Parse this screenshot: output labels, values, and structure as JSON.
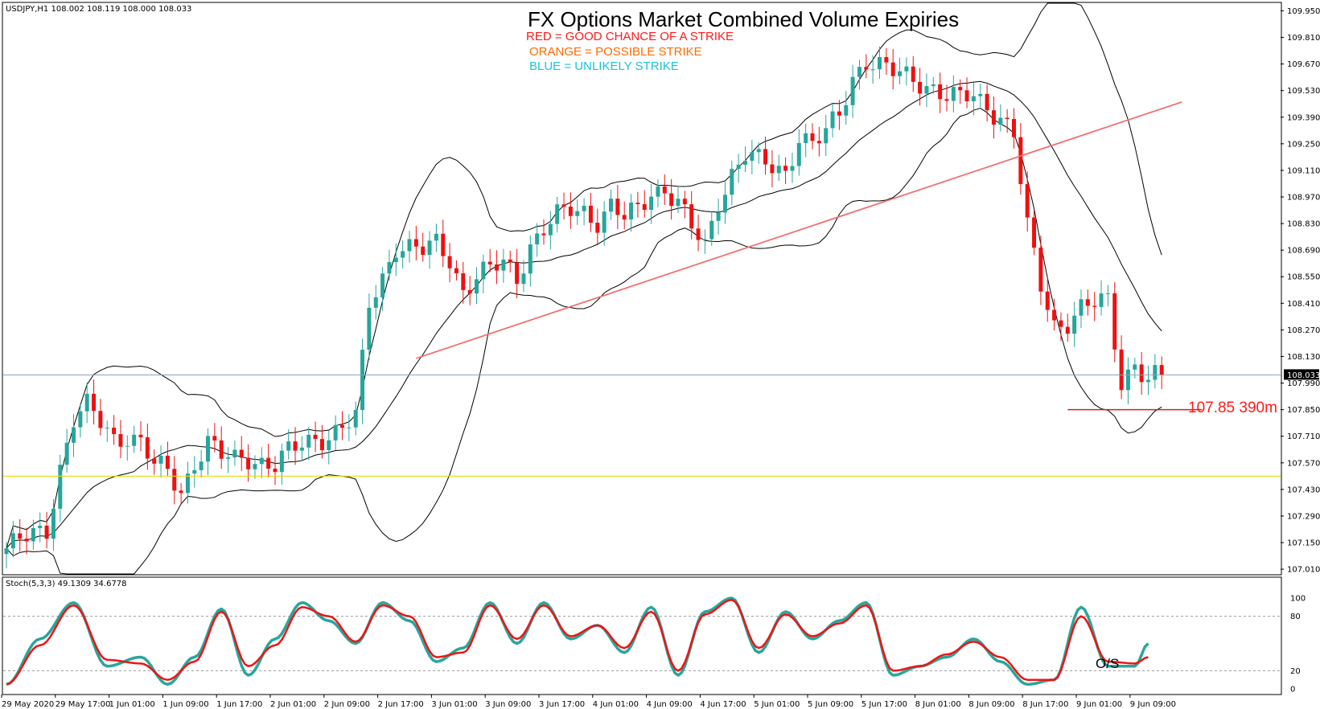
{
  "header": {
    "symbol_info": "USDJPY,H1  108.002 108.119 108.000 108.033"
  },
  "title": "FX Options Market Combined Volume Expiries",
  "legend": {
    "red": "RED = GOOD CHANCE OF A STRIKE",
    "orange": "ORANGE = POSSIBLE STRIKE",
    "blue": "BLUE = UNLIKELY STRIKE"
  },
  "colors": {
    "bull": "#26a69a",
    "bear": "#ee1010",
    "wick_bull": "#26a69a",
    "trendline": "#f07070",
    "support_line": "#f0d800",
    "price_line": "#8ca0b4",
    "red_text": "#ff1a1a",
    "orange_text": "#ff6a00",
    "blue_text": "#19c4d6",
    "stoch_main": "#2aa59a",
    "stoch_signal": "#ee1414"
  },
  "annotations": {
    "expiry_label": "107.85 390m",
    "expiry_level": 107.85,
    "current_price_label": "108.033",
    "current_price": 108.033,
    "support_level": 107.5,
    "os_label": "O/S"
  },
  "stoch_panel": {
    "label": "Stoch(5,3,3) 49.1309 34.6778",
    "levels": [
      100,
      80,
      20,
      0
    ],
    "level_labels": [
      "100",
      "80",
      "20",
      "0"
    ],
    "range": [
      0,
      100
    ]
  },
  "chart_data": {
    "type": "candlestick",
    "y_ticks": [
      "109.950",
      "109.810",
      "109.670",
      "109.530",
      "109.390",
      "109.250",
      "109.110",
      "108.970",
      "108.830",
      "108.690",
      "108.550",
      "108.410",
      "108.270",
      "108.130",
      "107.990",
      "107.850",
      "107.710",
      "107.570",
      "107.430",
      "107.290",
      "107.150",
      "107.010"
    ],
    "y_tick_values": [
      109.95,
      109.81,
      109.67,
      109.53,
      109.39,
      109.25,
      109.11,
      108.97,
      108.83,
      108.69,
      108.55,
      108.41,
      108.27,
      108.13,
      107.99,
      107.85,
      107.71,
      107.57,
      107.43,
      107.29,
      107.15,
      107.01
    ],
    "ylim": [
      106.985,
      109.99
    ],
    "x_ticks": [
      "29 May 2020",
      "29 May 17:00",
      "1 Jun 01:00",
      "1 Jun 09:00",
      "1 Jun 17:00",
      "2 Jun 01:00",
      "2 Jun 09:00",
      "2 Jun 17:00",
      "3 Jun 01:00",
      "3 Jun 09:00",
      "3 Jun 17:00",
      "4 Jun 01:00",
      "4 Jun 09:00",
      "4 Jun 17:00",
      "5 Jun 01:00",
      "5 Jun 09:00",
      "5 Jun 17:00",
      "8 Jun 01:00",
      "8 Jun 09:00",
      "8 Jun 17:00",
      "9 Jun 01:00",
      "9 Jun 09:00"
    ],
    "x_tick_bar_index": [
      0,
      8,
      16,
      24,
      32,
      40,
      48,
      56,
      64,
      72,
      80,
      88,
      96,
      104,
      112,
      120,
      128,
      136,
      144,
      152,
      160,
      168
    ],
    "close_path": [
      [
        0,
        107.12
      ],
      [
        6,
        107.22
      ],
      [
        8,
        107.55
      ],
      [
        10,
        107.8
      ],
      [
        12,
        107.86
      ],
      [
        14,
        107.78
      ],
      [
        16,
        107.7
      ],
      [
        18,
        107.72
      ],
      [
        20,
        107.68
      ],
      [
        22,
        107.55
      ],
      [
        24,
        107.52
      ],
      [
        26,
        107.42
      ],
      [
        28,
        107.58
      ],
      [
        30,
        107.68
      ],
      [
        32,
        107.6
      ],
      [
        34,
        107.58
      ],
      [
        36,
        107.6
      ],
      [
        38,
        107.58
      ],
      [
        40,
        107.56
      ],
      [
        42,
        107.62
      ],
      [
        44,
        107.66
      ],
      [
        46,
        107.7
      ],
      [
        48,
        107.72
      ],
      [
        50,
        107.76
      ],
      [
        52,
        107.8
      ],
      [
        54,
        108.4
      ],
      [
        56,
        108.55
      ],
      [
        58,
        108.72
      ],
      [
        60,
        108.7
      ],
      [
        62,
        108.68
      ],
      [
        64,
        108.72
      ],
      [
        66,
        108.65
      ],
      [
        68,
        108.48
      ],
      [
        70,
        108.55
      ],
      [
        72,
        108.58
      ],
      [
        74,
        108.62
      ],
      [
        76,
        108.55
      ],
      [
        78,
        108.72
      ],
      [
        80,
        108.8
      ],
      [
        82,
        108.86
      ],
      [
        84,
        108.9
      ],
      [
        86,
        108.9
      ],
      [
        88,
        108.85
      ],
      [
        90,
        108.92
      ],
      [
        92,
        108.85
      ],
      [
        94,
        108.9
      ],
      [
        96,
        109.0
      ],
      [
        98,
        109.02
      ],
      [
        100,
        108.94
      ],
      [
        102,
        108.8
      ],
      [
        104,
        108.7
      ],
      [
        106,
        108.95
      ],
      [
        108,
        109.1
      ],
      [
        110,
        109.2
      ],
      [
        112,
        109.15
      ],
      [
        114,
        109.12
      ],
      [
        116,
        109.1
      ],
      [
        118,
        109.3
      ],
      [
        120,
        109.25
      ],
      [
        122,
        109.3
      ],
      [
        124,
        109.4
      ],
      [
        126,
        109.6
      ],
      [
        128,
        109.7
      ],
      [
        130,
        109.66
      ],
      [
        132,
        109.62
      ],
      [
        134,
        109.6
      ],
      [
        136,
        109.58
      ],
      [
        138,
        109.55
      ],
      [
        140,
        109.5
      ],
      [
        142,
        109.48
      ],
      [
        144,
        109.5
      ],
      [
        146,
        109.45
      ],
      [
        148,
        109.4
      ],
      [
        150,
        109.3
      ],
      [
        152,
        108.8
      ],
      [
        154,
        108.5
      ],
      [
        156,
        108.3
      ],
      [
        158,
        108.32
      ],
      [
        160,
        108.38
      ],
      [
        162,
        108.4
      ],
      [
        164,
        108.42
      ],
      [
        166,
        108.0
      ],
      [
        168,
        108.1
      ],
      [
        170,
        108.0
      ],
      [
        172,
        108.033
      ]
    ],
    "trendline": {
      "x": [
        61,
        175
      ],
      "y": [
        108.12,
        109.47
      ]
    },
    "expiry_line": {
      "x": [
        158,
        178
      ],
      "y": [
        107.85,
        107.85
      ]
    },
    "stoch_main_path": [
      [
        0,
        5
      ],
      [
        5,
        55
      ],
      [
        10,
        95
      ],
      [
        15,
        25
      ],
      [
        20,
        35
      ],
      [
        24,
        5
      ],
      [
        28,
        35
      ],
      [
        32,
        88
      ],
      [
        36,
        15
      ],
      [
        40,
        55
      ],
      [
        44,
        95
      ],
      [
        48,
        75
      ],
      [
        52,
        50
      ],
      [
        56,
        95
      ],
      [
        60,
        75
      ],
      [
        64,
        30
      ],
      [
        68,
        45
      ],
      [
        72,
        95
      ],
      [
        76,
        50
      ],
      [
        80,
        95
      ],
      [
        84,
        55
      ],
      [
        88,
        70
      ],
      [
        92,
        40
      ],
      [
        96,
        90
      ],
      [
        100,
        15
      ],
      [
        104,
        85
      ],
      [
        108,
        100
      ],
      [
        112,
        40
      ],
      [
        116,
        85
      ],
      [
        120,
        55
      ],
      [
        124,
        75
      ],
      [
        128,
        95
      ],
      [
        132,
        15
      ],
      [
        136,
        25
      ],
      [
        140,
        35
      ],
      [
        144,
        55
      ],
      [
        148,
        30
      ],
      [
        152,
        5
      ],
      [
        156,
        10
      ],
      [
        160,
        90
      ],
      [
        164,
        25
      ],
      [
        168,
        25
      ],
      [
        170,
        50
      ]
    ],
    "stoch_signal_path": [
      [
        0,
        5
      ],
      [
        5,
        48
      ],
      [
        10,
        92
      ],
      [
        15,
        32
      ],
      [
        20,
        28
      ],
      [
        24,
        10
      ],
      [
        28,
        30
      ],
      [
        32,
        85
      ],
      [
        36,
        25
      ],
      [
        40,
        48
      ],
      [
        44,
        90
      ],
      [
        48,
        80
      ],
      [
        52,
        52
      ],
      [
        56,
        92
      ],
      [
        60,
        80
      ],
      [
        64,
        35
      ],
      [
        68,
        40
      ],
      [
        72,
        92
      ],
      [
        76,
        55
      ],
      [
        80,
        92
      ],
      [
        84,
        58
      ],
      [
        88,
        70
      ],
      [
        92,
        45
      ],
      [
        96,
        85
      ],
      [
        100,
        20
      ],
      [
        104,
        82
      ],
      [
        108,
        98
      ],
      [
        112,
        45
      ],
      [
        116,
        82
      ],
      [
        120,
        58
      ],
      [
        124,
        72
      ],
      [
        128,
        92
      ],
      [
        132,
        20
      ],
      [
        136,
        25
      ],
      [
        140,
        38
      ],
      [
        144,
        52
      ],
      [
        148,
        35
      ],
      [
        152,
        10
      ],
      [
        156,
        10
      ],
      [
        160,
        80
      ],
      [
        164,
        30
      ],
      [
        168,
        28
      ],
      [
        170,
        35
      ]
    ],
    "grid": false,
    "legend_position": "top-center"
  }
}
